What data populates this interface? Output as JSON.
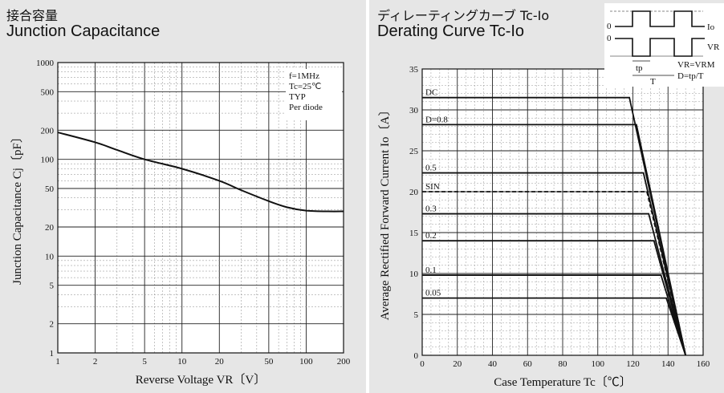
{
  "left_panel": {
    "title_jp": "接合容量",
    "title_en": "Junction Capacitance"
  },
  "right_panel": {
    "title_jp": "ディレーティングカーブ Tc-Io",
    "title_en": "Derating Curve Tc-Io",
    "inset": {
      "top_zero": "0",
      "bottom_zero": "0",
      "io_label": "Io",
      "vr_label": "VR",
      "tp_label": "tp",
      "t_label": "T",
      "eq1": "VR=VRM",
      "eq2": "D=tp/T"
    }
  },
  "chart_data": [
    {
      "type": "line",
      "title": "Junction Capacitance",
      "xlabel": "Reverse Voltage  VR〔V〕",
      "ylabel": "Junction Capacitance  Cj〔pF〕",
      "xscale": "log",
      "yscale": "log",
      "xlim": [
        1,
        200
      ],
      "ylim": [
        1,
        1000
      ],
      "x_ticks": [
        "1",
        "2",
        "5",
        "10",
        "20",
        "50",
        "100",
        "200"
      ],
      "y_ticks": [
        "1",
        "2",
        "5",
        "10",
        "20",
        "50",
        "100",
        "200",
        "500",
        "1000"
      ],
      "grid": true,
      "annotations": [
        "f=1MHz",
        "Tc=25℃",
        "TYP",
        "Per diode"
      ],
      "series": [
        {
          "x": [
            1,
            2,
            3,
            5,
            10,
            20,
            30,
            50,
            70,
            100,
            150,
            200
          ],
          "y": [
            190,
            150,
            125,
            100,
            80,
            60,
            48,
            37,
            32,
            29.5,
            29,
            29
          ]
        }
      ]
    },
    {
      "type": "line",
      "title": "Derating Curve Tc-Io",
      "xlabel": "Case Temperature  Tc〔℃〕",
      "ylabel": "Average Rectified Forward Current  Io〔A〕",
      "xlim": [
        0,
        160
      ],
      "ylim": [
        0,
        35
      ],
      "x_ticks": [
        "0",
        "20",
        "40",
        "60",
        "80",
        "100",
        "120",
        "140",
        "160"
      ],
      "y_ticks": [
        "0",
        "5",
        "10",
        "15",
        "20",
        "25",
        "30",
        "35"
      ],
      "grid": true,
      "series": [
        {
          "name": "DC",
          "x": [
            0,
            118,
            150
          ],
          "y": [
            31.5,
            31.5,
            0
          ]
        },
        {
          "name": "D=0.8",
          "x": [
            0,
            122,
            150
          ],
          "y": [
            28.2,
            28.2,
            0
          ]
        },
        {
          "name": "0.5",
          "x": [
            0,
            126,
            150
          ],
          "y": [
            22.3,
            22.3,
            0
          ]
        },
        {
          "name": "SIN",
          "x": [
            0,
            128,
            150
          ],
          "y": [
            20,
            20,
            0
          ],
          "dashed": true
        },
        {
          "name": "0.3",
          "x": [
            0,
            129,
            150
          ],
          "y": [
            17.3,
            17.3,
            0
          ]
        },
        {
          "name": "0.2",
          "x": [
            0,
            132,
            150
          ],
          "y": [
            14,
            14,
            0
          ]
        },
        {
          "name": "0.1",
          "x": [
            0,
            136,
            150
          ],
          "y": [
            9.8,
            9.8,
            0
          ]
        },
        {
          "name": "0.05",
          "x": [
            0,
            139,
            150
          ],
          "y": [
            7,
            7,
            0
          ]
        }
      ]
    }
  ]
}
